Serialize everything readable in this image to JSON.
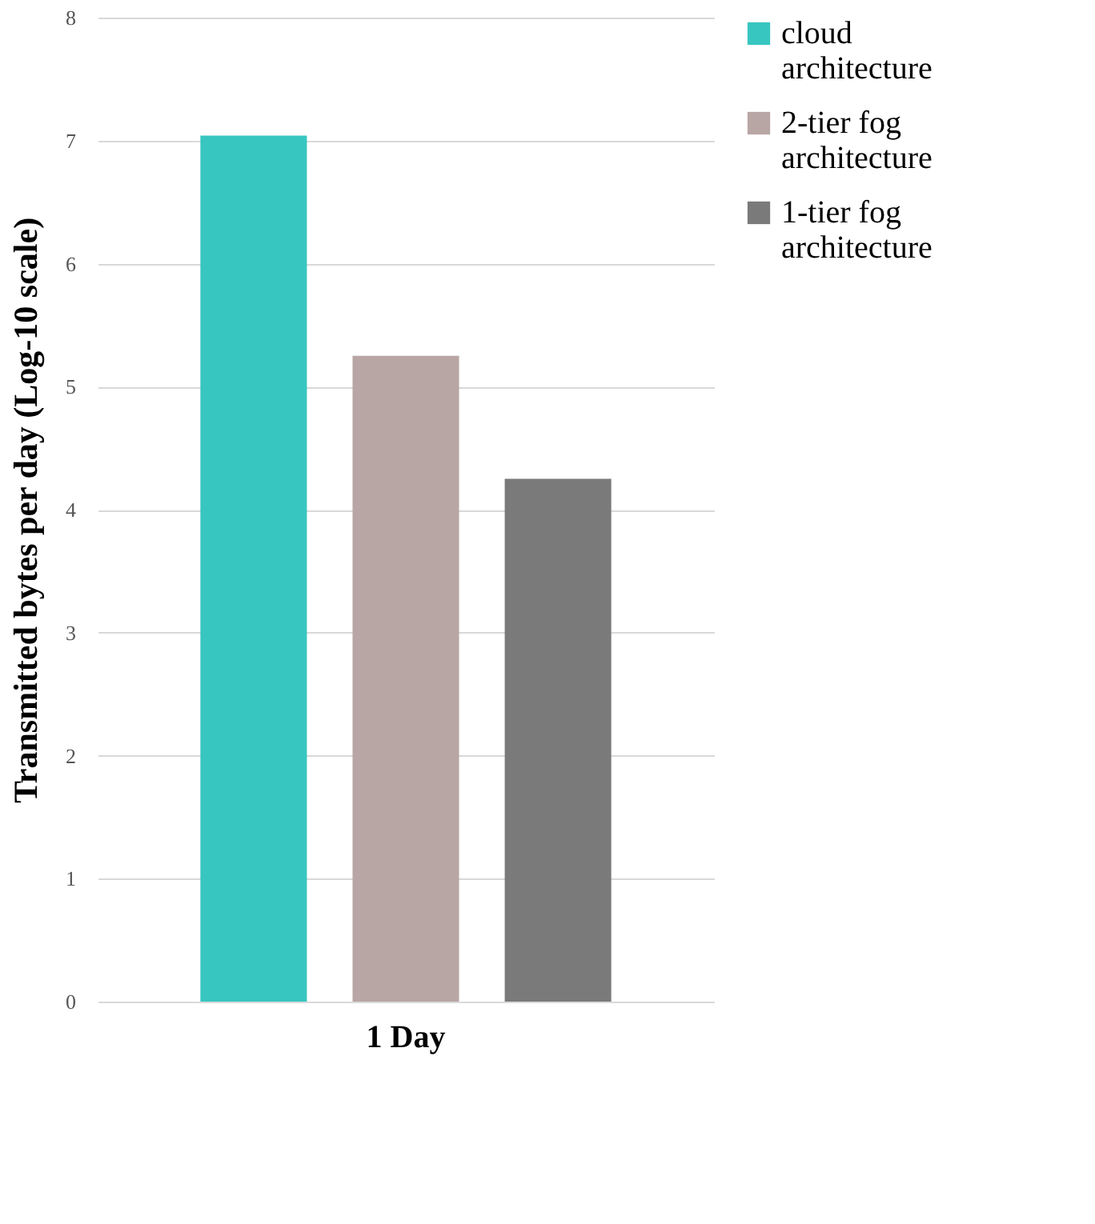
{
  "chart_data": {
    "type": "bar",
    "categories": [
      "1 Day"
    ],
    "ylabel": "Transmitted bytes per day (Log-10 scale)",
    "series": [
      {
        "name": "cloud architecture",
        "color": "#38c6c0",
        "values": [
          7.04
        ]
      },
      {
        "name": "2-tier fog architecture",
        "color": "#b8a6a5",
        "values": [
          5.25
        ]
      },
      {
        "name": "1-tier fog architecture",
        "color": "#7a7a7a",
        "values": [
          4.25
        ]
      }
    ],
    "ylim": [
      0,
      8
    ],
    "yticks": [
      0,
      1,
      2,
      3,
      4,
      5,
      6,
      7,
      8
    ],
    "grid": "y",
    "legend": "right"
  }
}
